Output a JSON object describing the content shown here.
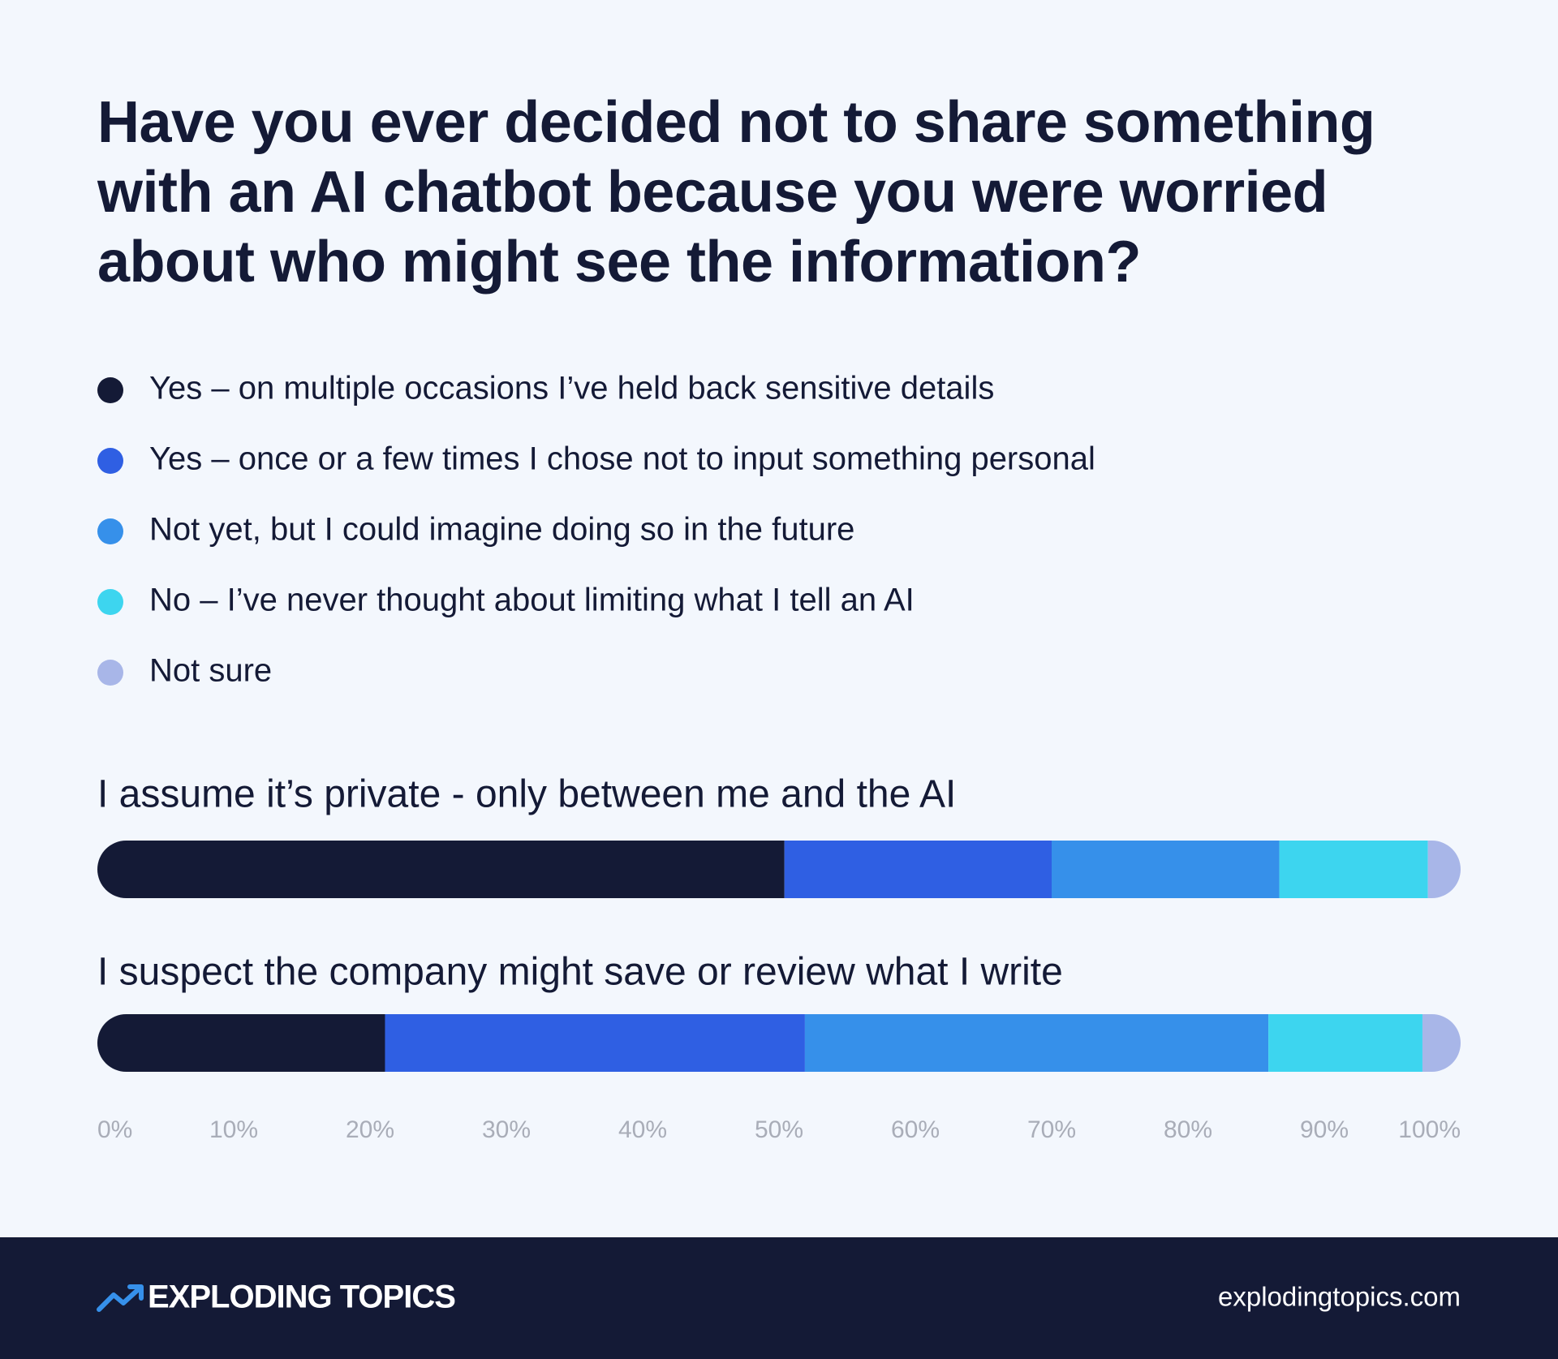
{
  "chart_data": {
    "type": "stacked-bar",
    "title": "Have you ever decided not to share something with an AI chatbot because you were worried about who might see the information?",
    "categories": [
      "I assume it’s private - only between me and the AI",
      "I suspect the company might save or review what I write"
    ],
    "series": [
      {
        "name": "Yes – on multiple occasions I’ve held back sensitive details",
        "color": "#141a36",
        "values": [
          50.4,
          21.1
        ]
      },
      {
        "name": "Yes – once or a few times I chose not to input something personal",
        "color": "#2f5fe3",
        "values": [
          19.6,
          30.8
        ]
      },
      {
        "name": "Not yet, but I could imagine doing so in the future",
        "color": "#3690ea",
        "values": [
          16.7,
          34.0
        ]
      },
      {
        "name": "No – I’ve never thought about limiting what I tell an AI",
        "color": "#3dd5ef",
        "values": [
          10.9,
          11.3
        ]
      },
      {
        "name": "Not sure",
        "color": "#a8b6e8",
        "values": [
          2.4,
          2.8
        ]
      }
    ],
    "xlim": [
      0,
      100
    ],
    "xticks": [
      {
        "value": 0,
        "label": "0%"
      },
      {
        "value": 10,
        "label": "10%"
      },
      {
        "value": 20,
        "label": "20%"
      },
      {
        "value": 30,
        "label": "30%"
      },
      {
        "value": 40,
        "label": "40%"
      },
      {
        "value": 50,
        "label": "50%"
      },
      {
        "value": 60,
        "label": "60%"
      },
      {
        "value": 70,
        "label": "70%"
      },
      {
        "value": 80,
        "label": "80%"
      },
      {
        "value": 90,
        "label": "90%"
      },
      {
        "value": 100,
        "label": "100%"
      }
    ],
    "grid": false
  },
  "footer": {
    "brand": "EXPLODING TOPICS",
    "url": "explodingtopics.com"
  }
}
